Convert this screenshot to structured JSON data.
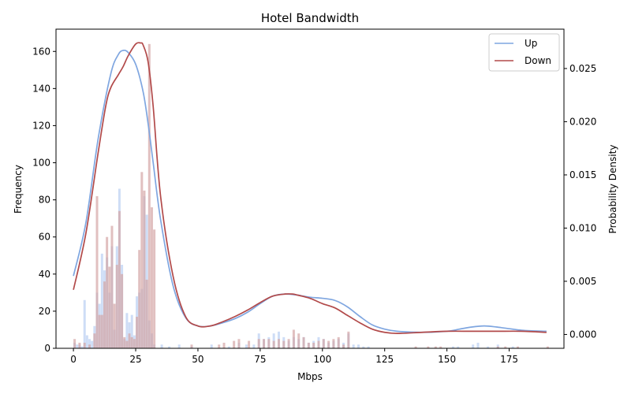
{
  "chart_data": {
    "type": "bar",
    "title": "Hotel Bandwidth",
    "xlabel": "Mbps",
    "ylabel": "Frequency",
    "y2label": "Probability Density",
    "xlim": [
      -7,
      197
    ],
    "ylim": [
      0,
      172
    ],
    "y2lim": [
      -0.0013,
      0.0287
    ],
    "xticks": [
      "0",
      "25",
      "50",
      "75",
      "100",
      "125",
      "150",
      "175"
    ],
    "yticks": [
      "0",
      "20",
      "40",
      "60",
      "80",
      "100",
      "120",
      "140",
      "160"
    ],
    "y2ticks": [
      "0.000",
      "0.005",
      "0.010",
      "0.015",
      "0.020",
      "0.025"
    ],
    "legend_position": "upper right",
    "bin_width": 0.95,
    "histograms": [
      {
        "name": "Up",
        "color": "#aec6f0",
        "bins": [
          [
            0,
            3
          ],
          [
            1,
            2
          ],
          [
            2,
            2
          ],
          [
            3,
            1
          ],
          [
            4,
            26
          ],
          [
            5,
            7
          ],
          [
            6,
            5
          ],
          [
            7,
            4
          ],
          [
            8,
            12
          ],
          [
            9,
            30
          ],
          [
            10,
            24
          ],
          [
            11,
            51
          ],
          [
            12,
            42
          ],
          [
            13,
            49
          ],
          [
            14,
            30
          ],
          [
            15,
            55
          ],
          [
            16,
            10
          ],
          [
            17,
            55
          ],
          [
            18,
            86
          ],
          [
            19,
            45
          ],
          [
            20,
            5
          ],
          [
            21,
            19
          ],
          [
            22,
            14
          ],
          [
            23,
            18
          ],
          [
            24,
            7
          ],
          [
            25,
            28
          ],
          [
            26,
            30
          ],
          [
            27,
            32
          ],
          [
            28,
            82
          ],
          [
            29,
            72
          ],
          [
            30,
            15
          ],
          [
            31,
            8
          ],
          [
            32,
            2
          ],
          [
            35,
            2
          ],
          [
            38,
            1
          ],
          [
            42,
            2
          ],
          [
            47,
            1
          ],
          [
            55,
            2
          ],
          [
            62,
            1
          ],
          [
            66,
            3
          ],
          [
            69,
            2
          ],
          [
            72,
            2
          ],
          [
            74,
            8
          ],
          [
            76,
            5
          ],
          [
            78,
            6
          ],
          [
            80,
            8
          ],
          [
            82,
            9
          ],
          [
            84,
            6
          ],
          [
            86,
            4
          ],
          [
            88,
            6
          ],
          [
            90,
            5
          ],
          [
            92,
            6
          ],
          [
            94,
            3
          ],
          [
            96,
            4
          ],
          [
            98,
            6
          ],
          [
            100,
            5
          ],
          [
            102,
            3
          ],
          [
            104,
            4
          ],
          [
            106,
            5
          ],
          [
            108,
            3
          ],
          [
            110,
            8
          ],
          [
            112,
            2
          ],
          [
            114,
            2
          ],
          [
            116,
            1
          ],
          [
            118,
            1
          ],
          [
            152,
            1
          ],
          [
            154,
            1
          ],
          [
            160,
            2
          ],
          [
            162,
            3
          ],
          [
            166,
            1
          ],
          [
            170,
            2
          ],
          [
            176,
            1
          ]
        ]
      },
      {
        "name": "Down",
        "color": "#d4a5a5",
        "bins": [
          [
            0,
            5
          ],
          [
            2,
            3
          ],
          [
            4,
            3
          ],
          [
            6,
            2
          ],
          [
            8,
            8
          ],
          [
            9,
            82
          ],
          [
            10,
            18
          ],
          [
            11,
            18
          ],
          [
            12,
            36
          ],
          [
            13,
            60
          ],
          [
            14,
            44
          ],
          [
            15,
            66
          ],
          [
            16,
            24
          ],
          [
            17,
            45
          ],
          [
            18,
            74
          ],
          [
            19,
            40
          ],
          [
            20,
            6
          ],
          [
            21,
            4
          ],
          [
            22,
            8
          ],
          [
            23,
            6
          ],
          [
            24,
            5
          ],
          [
            25,
            17
          ],
          [
            26,
            53
          ],
          [
            27,
            95
          ],
          [
            28,
            85
          ],
          [
            29,
            37
          ],
          [
            30,
            164
          ],
          [
            31,
            76
          ],
          [
            32,
            64
          ],
          [
            47,
            2
          ],
          [
            58,
            2
          ],
          [
            60,
            3
          ],
          [
            64,
            4
          ],
          [
            66,
            5
          ],
          [
            70,
            4
          ],
          [
            74,
            5
          ],
          [
            76,
            5
          ],
          [
            78,
            5
          ],
          [
            80,
            4
          ],
          [
            82,
            5
          ],
          [
            84,
            4
          ],
          [
            86,
            5
          ],
          [
            88,
            10
          ],
          [
            90,
            8
          ],
          [
            92,
            6
          ],
          [
            94,
            3
          ],
          [
            96,
            3
          ],
          [
            98,
            4
          ],
          [
            100,
            5
          ],
          [
            102,
            4
          ],
          [
            104,
            5
          ],
          [
            106,
            6
          ],
          [
            108,
            2
          ],
          [
            110,
            9
          ],
          [
            137,
            1
          ],
          [
            142,
            1
          ],
          [
            145,
            1
          ],
          [
            147,
            1
          ],
          [
            170,
            1
          ],
          [
            173,
            1
          ],
          [
            178,
            1
          ],
          [
            190,
            1
          ]
        ]
      }
    ],
    "series": [
      {
        "name": "Up",
        "color": "#7fa6e0",
        "x": [
          0,
          5,
          10,
          15,
          18,
          20,
          22,
          25,
          28,
          30,
          32,
          35,
          40,
          45,
          50,
          55,
          60,
          65,
          70,
          75,
          80,
          85,
          90,
          95,
          100,
          105,
          110,
          115,
          120,
          125,
          130,
          140,
          150,
          155,
          160,
          165,
          170,
          180,
          190
        ],
        "y": [
          0.0055,
          0.0105,
          0.0185,
          0.0245,
          0.0263,
          0.0267,
          0.0265,
          0.0254,
          0.0228,
          0.0198,
          0.0162,
          0.0108,
          0.0046,
          0.0016,
          0.0008,
          0.0008,
          0.0011,
          0.0015,
          0.0021,
          0.0029,
          0.0036,
          0.0038,
          0.0037,
          0.0035,
          0.0034,
          0.0032,
          0.0026,
          0.0017,
          0.0009,
          0.0005,
          0.0003,
          0.0002,
          0.0003,
          0.0005,
          0.0007,
          0.0008,
          0.0007,
          0.0004,
          0.0003
        ]
      },
      {
        "name": "Down",
        "color": "#b24a4a",
        "x": [
          0,
          5,
          10,
          13,
          15,
          18,
          20,
          22,
          25,
          27,
          28,
          30,
          32,
          35,
          40,
          45,
          50,
          55,
          60,
          65,
          70,
          75,
          80,
          85,
          88,
          90,
          95,
          100,
          105,
          110,
          115,
          120,
          125,
          130,
          140,
          150,
          160,
          170,
          180,
          190
        ],
        "y": [
          0.0042,
          0.0095,
          0.0172,
          0.0215,
          0.0232,
          0.0244,
          0.0252,
          0.0262,
          0.0273,
          0.0274,
          0.0272,
          0.0256,
          0.0215,
          0.013,
          0.0055,
          0.0017,
          0.0008,
          0.0008,
          0.0012,
          0.0017,
          0.0023,
          0.003,
          0.0036,
          0.0038,
          0.0038,
          0.0037,
          0.0034,
          0.0029,
          0.0025,
          0.0018,
          0.0011,
          0.0005,
          0.0002,
          0.0001,
          0.0002,
          0.0003,
          0.0003,
          0.0003,
          0.0003,
          0.0002
        ]
      }
    ]
  }
}
